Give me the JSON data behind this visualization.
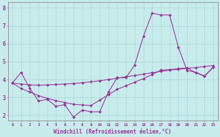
{
  "xlabel": "Windchill (Refroidissement éolien,°C)",
  "bg_color": "#c8ecec",
  "grid_color": "#b0d8d8",
  "line_color": "#993399",
  "x_values": [
    0,
    1,
    2,
    3,
    4,
    5,
    6,
    7,
    8,
    9,
    10,
    11,
    12,
    13,
    14,
    15,
    16,
    17,
    18,
    19,
    20,
    21,
    22,
    23
  ],
  "y_main": [
    3.8,
    4.4,
    3.5,
    2.8,
    2.9,
    2.5,
    2.6,
    1.9,
    2.3,
    2.2,
    2.2,
    3.3,
    4.1,
    4.1,
    4.8,
    6.4,
    7.7,
    7.6,
    7.6,
    5.8,
    4.5,
    4.4,
    4.2,
    4.7
  ],
  "y_line2": [
    3.8,
    3.75,
    3.7,
    3.68,
    3.7,
    3.72,
    3.75,
    3.78,
    3.82,
    3.87,
    3.93,
    4.0,
    4.07,
    4.15,
    4.22,
    4.3,
    4.38,
    4.45,
    4.52,
    4.57,
    4.62,
    4.67,
    4.72,
    4.78
  ],
  "y_line3": [
    3.8,
    3.5,
    3.3,
    3.1,
    2.95,
    2.82,
    2.72,
    2.62,
    2.58,
    2.55,
    2.85,
    3.15,
    3.45,
    3.65,
    3.85,
    4.05,
    4.28,
    4.52,
    4.55,
    4.6,
    4.65,
    4.38,
    4.18,
    4.68
  ],
  "ylim": [
    1.7,
    8.3
  ],
  "yticks": [
    2,
    3,
    4,
    5,
    6,
    7,
    8
  ],
  "xticks": [
    0,
    1,
    2,
    3,
    4,
    5,
    6,
    7,
    8,
    9,
    10,
    11,
    12,
    13,
    14,
    15,
    16,
    17,
    18,
    19,
    20,
    21,
    22,
    23
  ],
  "marker": "D",
  "marker_size": 2,
  "line_width": 0.8
}
